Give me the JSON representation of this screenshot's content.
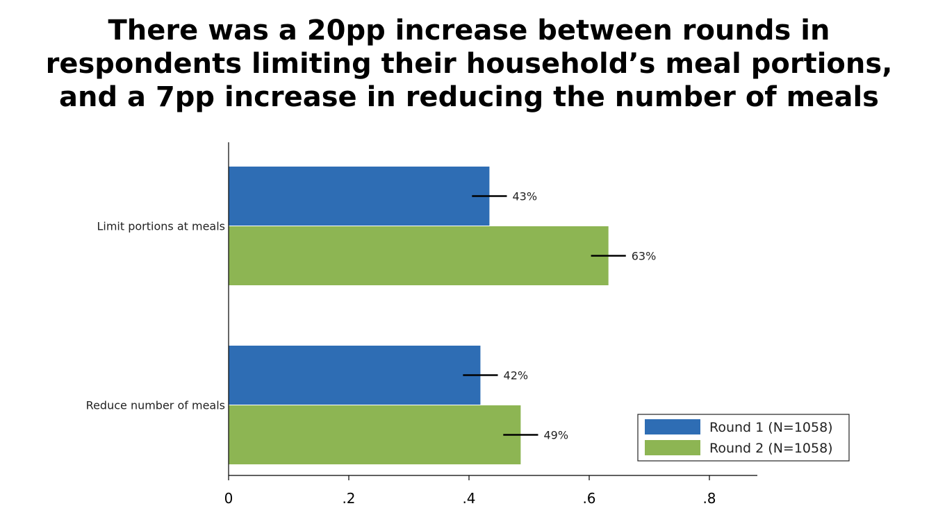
{
  "title_lines": [
    "There was a 20pp increase between rounds in",
    "respondents limiting their household’s meal portions,",
    "and a 7pp increase in reducing the number of meals"
  ],
  "chart_data": {
    "type": "bar",
    "orientation": "horizontal",
    "categories": [
      "Limit portions at meals",
      "Reduce number of meals"
    ],
    "series": [
      {
        "name": "Round 1 (N=1058)",
        "color": "#2e6db4",
        "values": [
          0.434,
          0.419
        ],
        "labels": [
          "43%",
          "42%"
        ],
        "ci_low": [
          0.405,
          0.39
        ],
        "ci_high": [
          0.463,
          0.448
        ]
      },
      {
        "name": "Round 2 (N=1058)",
        "color": "#8db553",
        "values": [
          0.632,
          0.486
        ],
        "labels": [
          "63%",
          "49%"
        ],
        "ci_low": [
          0.603,
          0.457
        ],
        "ci_high": [
          0.661,
          0.515
        ]
      }
    ],
    "xlim": [
      0,
      0.88
    ],
    "xticks": [
      0,
      0.2,
      0.4,
      0.6,
      0.8
    ],
    "xtick_labels": [
      "0",
      ".2",
      ".4",
      ".6",
      ".8"
    ],
    "xlabel": "",
    "ylabel": "",
    "grid": false,
    "legend_position": "bottom-right"
  }
}
